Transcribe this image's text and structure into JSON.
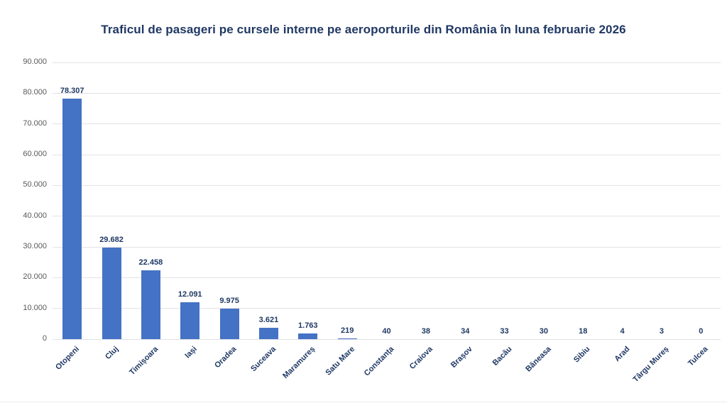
{
  "chart_data": {
    "type": "bar",
    "title": "Traficul de pasageri pe cursele interne pe aeroporturile din România în luna februarie 2026",
    "categories": [
      "Otopeni",
      "Cluj",
      "Timișoara",
      "Iași",
      "Oradea",
      "Suceava",
      "Maramureș",
      "Satu Mare",
      "Constanța",
      "Craiova",
      "Brașov",
      "Bacău",
      "Băneasa",
      "Sibiu",
      "Arad",
      "Târgu Mureș",
      "Tulcea"
    ],
    "values": [
      78307,
      29682,
      22458,
      12091,
      9975,
      3621,
      1763,
      219,
      40,
      38,
      34,
      33,
      30,
      18,
      4,
      3,
      0
    ],
    "value_labels": [
      "78.307",
      "29.682",
      "22.458",
      "12.091",
      "9.975",
      "3.621",
      "1.763",
      "219",
      "40",
      "38",
      "34",
      "33",
      "30",
      "18",
      "4",
      "3",
      "0"
    ],
    "xlabel": "",
    "ylabel": "",
    "ylim": [
      0,
      90000
    ],
    "ytick_step": 10000,
    "ytick_labels": [
      "0",
      "10.000",
      "20.000",
      "30.000",
      "40.000",
      "50.000",
      "60.000",
      "70.000",
      "80.000",
      "90.000"
    ],
    "grid": true,
    "legend": false,
    "colors": {
      "bar": "#4472C4",
      "title": "#203864",
      "data_label": "#1F3864",
      "x_axis_label": "#1F3864",
      "y_axis_label": "#595959",
      "gridline": "#E2E2E6",
      "background": "#FFFFFF"
    }
  }
}
